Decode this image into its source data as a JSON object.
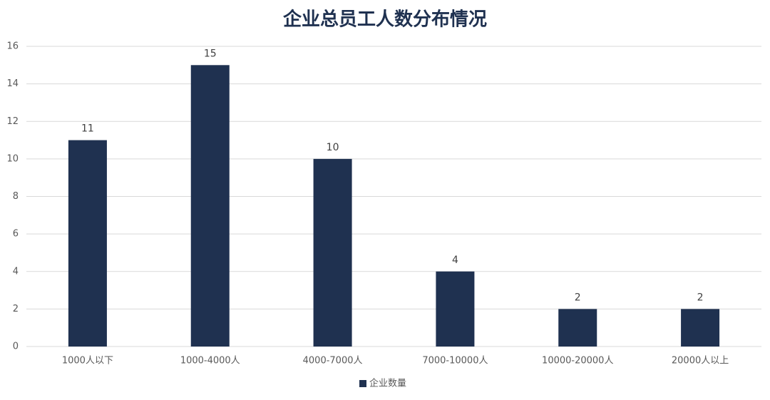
{
  "chart_data": {
    "type": "bar",
    "title": "企业总员工人数分布情况",
    "categories": [
      "1000人以下",
      "1000-4000人",
      "4000-7000人",
      "7000-10000人",
      "10000-20000人",
      "20000人以上"
    ],
    "series": [
      {
        "name": "企业数量",
        "color": "#1f3150",
        "values": [
          11,
          15,
          10,
          4,
          2,
          2
        ]
      }
    ],
    "ylim": [
      0,
      16
    ],
    "yticks": [
      0,
      2,
      4,
      6,
      8,
      10,
      12,
      14,
      16
    ],
    "grid": true,
    "legend": "bottom"
  }
}
